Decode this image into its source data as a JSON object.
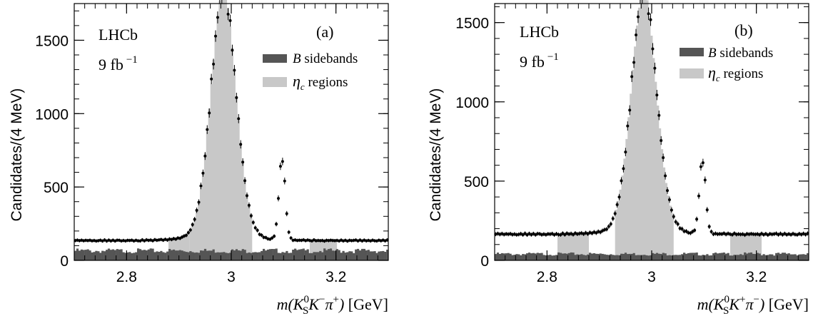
{
  "chart_data": [
    {
      "type": "histogram",
      "panel_label": "(a)",
      "experiment": "LHCb",
      "luminosity": "9 fb",
      "luminosity_exp": "−1",
      "ylabel": "Candidates/(4 MeV)",
      "xlabel": {
        "pre": "m(K",
        "sup": "0",
        "sub": "S",
        "mid": "K",
        "s1": "−",
        "p": "π",
        "s2": "+",
        "post": ")",
        "unit": " [GeV]"
      },
      "xlim": [
        2.7,
        3.3
      ],
      "ylim": [
        0,
        1750
      ],
      "xticks": [
        2.8,
        3.0,
        3.2
      ],
      "xtick_labels": [
        "2.8",
        "3",
        "3.2"
      ],
      "yticks": [
        0,
        500,
        1000,
        1500
      ],
      "ytick_labels": [
        "0",
        "500",
        "1000",
        "1500"
      ],
      "legend": [
        {
          "pre": "B",
          "text": " sidebands",
          "color": "#555555"
        },
        {
          "pre": "η",
          "sub": "c",
          "text": " regions",
          "color": "#c8c8c8"
        }
      ],
      "legend_placement": "top-right",
      "eta_c_regions": [
        [
          2.88,
          2.92
        ],
        [
          2.92,
          3.04
        ],
        [
          3.15,
          3.2
        ]
      ],
      "eta_c_level_sideband": 120,
      "peak": {
        "mu": 2.985,
        "sigma": 0.024,
        "amp": 1530,
        "base": 120
      },
      "psi": {
        "mu": 3.097,
        "sigma": 0.006,
        "amp": 560,
        "base": 190
      },
      "tail_level": 135,
      "sideband_level": 65,
      "colors": {
        "data": "#000000",
        "sidebands": "#555555",
        "regions": "#c8c8c8"
      }
    },
    {
      "type": "histogram",
      "panel_label": "(b)",
      "experiment": "LHCb",
      "luminosity": "9 fb",
      "luminosity_exp": "−1",
      "ylabel": "Candidates/(4 MeV)",
      "xlabel": {
        "pre": "m(K",
        "sup": "0",
        "sub": "S",
        "mid": "K",
        "s1": "+",
        "p": "π",
        "s2": "−",
        "post": ")",
        "unit": " [GeV]"
      },
      "xlim": [
        2.7,
        3.3
      ],
      "ylim": [
        0,
        1620
      ],
      "xticks": [
        2.8,
        3.0,
        3.2
      ],
      "xtick_labels": [
        "2.8",
        "3",
        "3.2"
      ],
      "yticks": [
        0,
        500,
        1000,
        1500
      ],
      "ytick_labels": [
        "0",
        "500",
        "1000",
        "1500"
      ],
      "legend": [
        {
          "pre": "B",
          "text": " sidebands",
          "color": "#555555"
        },
        {
          "pre": "η",
          "sub": "c",
          "text": " regions",
          "color": "#c8c8c8"
        }
      ],
      "legend_placement": "top-right",
      "eta_c_regions": [
        [
          2.82,
          2.88
        ],
        [
          2.93,
          3.04
        ],
        [
          3.15,
          3.21
        ]
      ],
      "eta_c_level_sideband": 130,
      "peak": {
        "mu": 2.985,
        "sigma": 0.024,
        "amp": 1380,
        "base": 130
      },
      "psi": {
        "mu": 3.097,
        "sigma": 0.006,
        "amp": 470,
        "base": 230
      },
      "tail_level": 165,
      "sideband_level": 40,
      "colors": {
        "data": "#000000",
        "sidebands": "#555555",
        "regions": "#c8c8c8"
      }
    }
  ]
}
